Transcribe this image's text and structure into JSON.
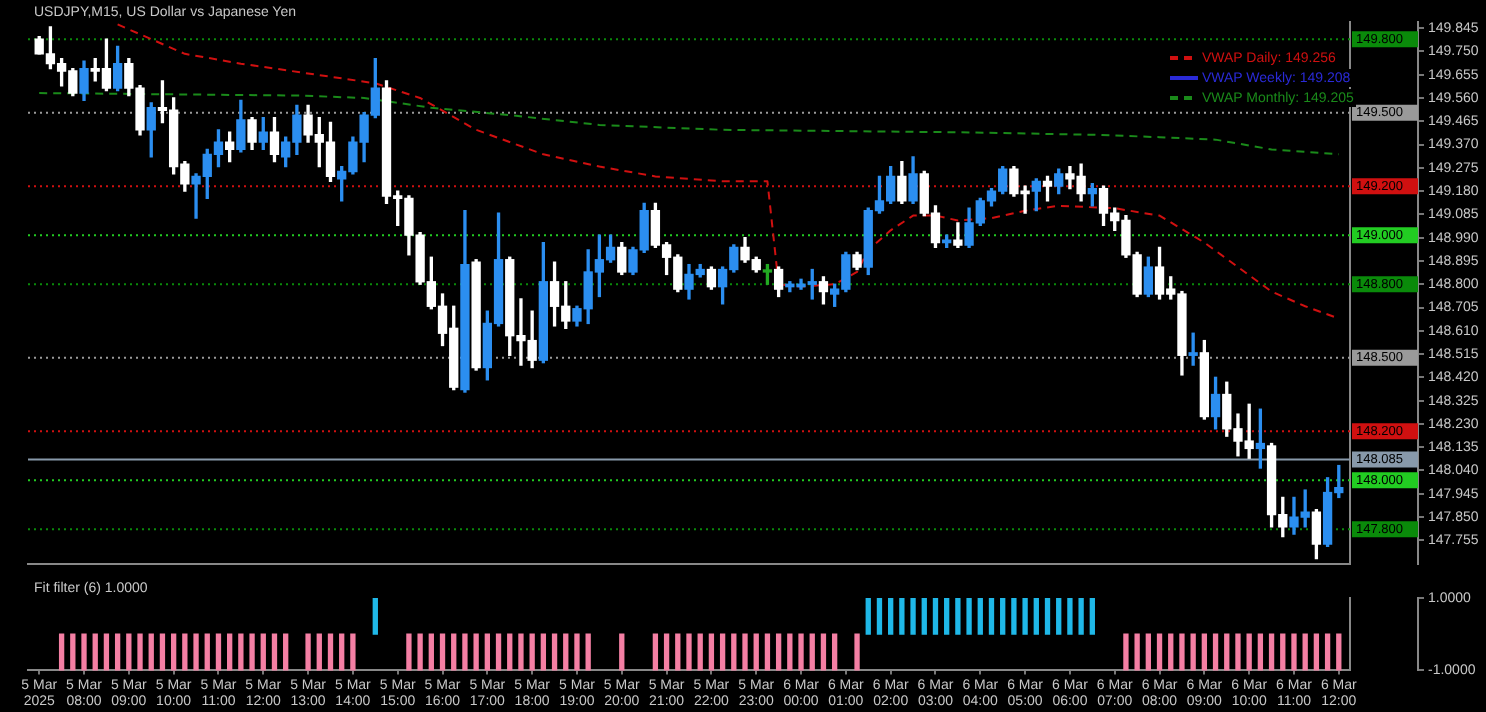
{
  "chart_data": [
    {
      "type": "candlestick",
      "title": "USDJPY,M15, US Dollar vs Japanese Yen",
      "legend": "top right",
      "tick_labels": "y",
      "grid": false,
      "x": [
        "2025-03-05T07:00",
        "2025-03-05T07:15",
        "2025-03-05T07:30",
        "2025-03-05T07:45",
        "2025-03-05T08:00",
        "2025-03-05T08:15",
        "2025-03-05T08:30",
        "2025-03-05T08:45",
        "2025-03-05T09:00",
        "2025-03-05T09:15",
        "2025-03-05T09:30",
        "2025-03-05T09:45",
        "2025-03-05T10:00",
        "2025-03-05T10:15",
        "2025-03-05T10:30",
        "2025-03-05T10:45",
        "2025-03-05T11:00",
        "2025-03-05T11:15",
        "2025-03-05T11:30",
        "2025-03-05T11:45",
        "2025-03-05T12:00",
        "2025-03-05T12:15",
        "2025-03-05T12:30",
        "2025-03-05T12:45",
        "2025-03-05T13:00",
        "2025-03-05T13:15",
        "2025-03-05T13:30",
        "2025-03-05T13:45",
        "2025-03-05T14:00",
        "2025-03-05T14:15",
        "2025-03-05T14:30",
        "2025-03-05T14:45",
        "2025-03-05T15:00",
        "2025-03-05T15:15",
        "2025-03-05T15:30",
        "2025-03-05T15:45",
        "2025-03-05T16:00",
        "2025-03-05T16:15",
        "2025-03-05T16:30",
        "2025-03-05T16:45",
        "2025-03-05T17:00",
        "2025-03-05T17:15",
        "2025-03-05T17:30",
        "2025-03-05T17:45",
        "2025-03-05T18:00",
        "2025-03-05T18:15",
        "2025-03-05T18:30",
        "2025-03-05T18:45",
        "2025-03-05T19:00",
        "2025-03-05T19:15",
        "2025-03-05T19:30",
        "2025-03-05T19:45",
        "2025-03-05T20:00",
        "2025-03-05T20:15",
        "2025-03-05T20:30",
        "2025-03-05T20:45",
        "2025-03-05T21:00",
        "2025-03-05T21:15",
        "2025-03-05T21:30",
        "2025-03-05T21:45",
        "2025-03-05T22:00",
        "2025-03-05T22:15",
        "2025-03-05T22:30",
        "2025-03-05T22:45",
        "2025-03-05T23:00",
        "2025-03-05T23:15",
        "2025-03-05T23:30",
        "2025-03-05T23:45",
        "2025-03-06T00:00",
        "2025-03-06T00:15",
        "2025-03-06T00:30",
        "2025-03-06T00:45",
        "2025-03-06T01:00",
        "2025-03-06T01:15",
        "2025-03-06T01:30",
        "2025-03-06T01:45",
        "2025-03-06T02:00",
        "2025-03-06T02:15",
        "2025-03-06T02:30",
        "2025-03-06T02:45",
        "2025-03-06T03:00",
        "2025-03-06T03:15",
        "2025-03-06T03:30",
        "2025-03-06T03:45",
        "2025-03-06T04:00",
        "2025-03-06T04:15",
        "2025-03-06T04:30",
        "2025-03-06T04:45",
        "2025-03-06T05:00",
        "2025-03-06T05:15",
        "2025-03-06T05:30",
        "2025-03-06T05:45",
        "2025-03-06T06:00",
        "2025-03-06T06:15",
        "2025-03-06T06:30",
        "2025-03-06T06:45",
        "2025-03-06T07:00",
        "2025-03-06T07:15",
        "2025-03-06T07:30",
        "2025-03-06T07:45",
        "2025-03-06T08:00",
        "2025-03-06T08:15",
        "2025-03-06T08:30",
        "2025-03-06T08:45",
        "2025-03-06T09:00",
        "2025-03-06T09:15",
        "2025-03-06T09:30",
        "2025-03-06T09:45",
        "2025-03-06T10:00",
        "2025-03-06T10:15",
        "2025-03-06T10:30",
        "2025-03-06T10:45",
        "2025-03-06T11:00",
        "2025-03-06T11:15",
        "2025-03-06T11:30",
        "2025-03-06T11:45",
        "2025-03-06T12:00"
      ],
      "ohlc": [
        [
          149.8,
          149.81,
          149.74,
          149.74
        ],
        [
          149.74,
          149.85,
          149.68,
          149.7
        ],
        [
          149.7,
          149.72,
          149.61,
          149.67
        ],
        [
          149.67,
          149.68,
          149.57,
          149.58
        ],
        [
          149.58,
          149.71,
          149.55,
          149.68
        ],
        [
          149.68,
          149.72,
          149.63,
          149.67
        ],
        [
          149.68,
          149.8,
          149.59,
          149.6
        ],
        [
          149.6,
          149.77,
          149.59,
          149.7
        ],
        [
          149.7,
          149.72,
          149.57,
          149.6
        ],
        [
          149.6,
          149.61,
          149.41,
          149.43
        ],
        [
          149.43,
          149.54,
          149.32,
          149.52
        ],
        [
          149.52,
          149.63,
          149.46,
          149.51
        ],
        [
          149.51,
          149.56,
          149.25,
          149.28
        ],
        [
          149.29,
          149.3,
          149.18,
          149.21
        ],
        [
          149.21,
          149.25,
          149.07,
          149.24
        ],
        [
          149.24,
          149.35,
          149.15,
          149.33
        ],
        [
          149.33,
          149.43,
          149.28,
          149.38
        ],
        [
          149.38,
          149.42,
          149.3,
          149.35
        ],
        [
          149.35,
          149.55,
          149.34,
          149.47
        ],
        [
          149.47,
          149.48,
          149.35,
          149.38
        ],
        [
          149.38,
          149.48,
          149.35,
          149.42
        ],
        [
          149.42,
          149.48,
          149.3,
          149.33
        ],
        [
          149.32,
          149.4,
          149.28,
          149.38
        ],
        [
          149.38,
          149.53,
          149.33,
          149.49
        ],
        [
          149.49,
          149.53,
          149.38,
          149.41
        ],
        [
          149.41,
          149.48,
          149.28,
          149.38
        ],
        [
          149.38,
          149.46,
          149.22,
          149.24
        ],
        [
          149.23,
          149.28,
          149.14,
          149.26
        ],
        [
          149.26,
          149.4,
          149.25,
          149.38
        ],
        [
          149.38,
          149.5,
          149.3,
          149.49
        ],
        [
          149.49,
          149.72,
          149.48,
          149.6
        ],
        [
          149.6,
          149.63,
          149.13,
          149.16
        ],
        [
          149.16,
          149.18,
          149.04,
          149.15
        ],
        [
          149.15,
          149.16,
          148.92,
          149.0
        ],
        [
          149.0,
          149.01,
          148.8,
          148.81
        ],
        [
          148.81,
          148.91,
          148.7,
          148.71
        ],
        [
          148.71,
          148.76,
          148.55,
          148.6
        ],
        [
          148.62,
          148.71,
          148.37,
          148.38
        ],
        [
          148.37,
          149.1,
          148.36,
          148.88
        ],
        [
          148.89,
          148.9,
          148.45,
          148.46
        ],
        [
          148.46,
          148.69,
          148.41,
          148.64
        ],
        [
          148.64,
          149.09,
          148.63,
          148.9
        ],
        [
          148.9,
          148.91,
          148.51,
          148.59
        ],
        [
          148.59,
          148.74,
          148.47,
          148.57
        ],
        [
          148.57,
          148.69,
          148.46,
          148.49
        ],
        [
          148.49,
          148.97,
          148.48,
          148.81
        ],
        [
          148.81,
          148.89,
          148.63,
          148.71
        ],
        [
          148.71,
          148.81,
          148.62,
          148.65
        ],
        [
          148.65,
          148.71,
          148.63,
          148.7
        ],
        [
          148.7,
          148.94,
          148.64,
          148.85
        ],
        [
          148.85,
          149.0,
          148.75,
          148.9
        ],
        [
          148.9,
          149.0,
          148.89,
          148.95
        ],
        [
          148.95,
          148.97,
          148.84,
          148.85
        ],
        [
          148.85,
          148.95,
          148.84,
          148.94
        ],
        [
          148.94,
          149.13,
          148.93,
          149.1
        ],
        [
          149.1,
          149.13,
          148.95,
          148.96
        ],
        [
          148.96,
          148.97,
          148.84,
          148.91
        ],
        [
          148.91,
          148.92,
          148.77,
          148.78
        ],
        [
          148.78,
          148.88,
          148.74,
          148.84
        ],
        [
          148.84,
          148.88,
          148.83,
          148.86
        ],
        [
          148.86,
          148.87,
          148.78,
          148.79
        ],
        [
          148.79,
          148.87,
          148.72,
          148.86
        ],
        [
          148.86,
          148.96,
          148.85,
          148.95
        ],
        [
          148.95,
          148.99,
          148.89,
          148.9
        ],
        [
          148.9,
          148.91,
          148.85,
          148.86
        ],
        [
          148.85,
          148.88,
          148.8,
          148.85
        ],
        [
          148.86,
          148.87,
          148.75,
          148.78
        ],
        [
          148.79,
          148.81,
          148.77,
          148.8
        ],
        [
          148.79,
          148.82,
          148.78,
          148.8
        ],
        [
          148.8,
          148.86,
          148.74,
          148.81
        ],
        [
          148.81,
          148.83,
          148.72,
          148.77
        ],
        [
          148.76,
          148.8,
          148.71,
          148.78
        ],
        [
          148.78,
          148.93,
          148.77,
          148.92
        ],
        [
          148.92,
          148.93,
          148.86,
          148.87
        ],
        [
          148.87,
          149.11,
          148.84,
          149.1
        ],
        [
          149.1,
          149.24,
          149.09,
          149.14
        ],
        [
          149.14,
          149.28,
          149.13,
          149.24
        ],
        [
          149.24,
          149.3,
          149.13,
          149.14
        ],
        [
          149.14,
          149.32,
          149.13,
          149.25
        ],
        [
          149.25,
          149.26,
          149.08,
          149.09
        ],
        [
          149.09,
          149.12,
          148.95,
          148.97
        ],
        [
          148.97,
          149.0,
          148.95,
          148.98
        ],
        [
          148.98,
          149.05,
          148.95,
          148.96
        ],
        [
          148.96,
          149.11,
          148.95,
          149.05
        ],
        [
          149.05,
          149.15,
          149.04,
          149.14
        ],
        [
          149.14,
          149.19,
          149.12,
          149.18
        ],
        [
          149.18,
          149.28,
          149.17,
          149.27
        ],
        [
          149.27,
          149.28,
          149.16,
          149.17
        ],
        [
          149.18,
          149.2,
          149.09,
          149.17
        ],
        [
          149.18,
          149.23,
          149.1,
          149.22
        ],
        [
          149.22,
          149.24,
          149.14,
          149.2
        ],
        [
          149.2,
          149.27,
          149.17,
          149.25
        ],
        [
          149.25,
          149.28,
          149.19,
          149.23
        ],
        [
          149.24,
          149.29,
          149.14,
          149.17
        ],
        [
          149.17,
          149.21,
          149.12,
          149.19
        ],
        [
          149.19,
          149.2,
          149.04,
          149.09
        ],
        [
          149.09,
          149.11,
          149.02,
          149.06
        ],
        [
          149.06,
          149.08,
          148.91,
          148.92
        ],
        [
          148.92,
          148.93,
          148.75,
          148.76
        ],
        [
          148.76,
          148.91,
          148.75,
          148.87
        ],
        [
          148.87,
          148.95,
          148.74,
          148.76
        ],
        [
          148.78,
          148.83,
          148.74,
          148.76
        ],
        [
          148.76,
          148.77,
          148.43,
          148.51
        ],
        [
          148.51,
          148.6,
          148.47,
          148.52
        ],
        [
          148.52,
          148.57,
          148.25,
          148.26
        ],
        [
          148.26,
          148.42,
          148.21,
          148.35
        ],
        [
          148.35,
          148.4,
          148.18,
          148.21
        ],
        [
          148.21,
          148.27,
          148.1,
          148.16
        ],
        [
          148.16,
          148.31,
          148.09,
          148.13
        ],
        [
          148.13,
          148.29,
          148.05,
          148.15
        ],
        [
          148.14,
          148.15,
          147.81,
          147.86
        ],
        [
          147.86,
          147.93,
          147.77,
          147.81
        ],
        [
          147.81,
          147.93,
          147.78,
          147.85
        ],
        [
          147.85,
          147.96,
          147.81,
          147.87
        ],
        [
          147.87,
          147.88,
          147.68,
          147.74
        ],
        [
          147.74,
          148.01,
          147.73,
          147.95
        ],
        [
          147.95,
          148.06,
          147.93,
          147.97
        ]
      ],
      "colors": [
        "#ffffff",
        "#ffffff",
        "#ffffff",
        "#ffffff",
        "#2b8ef0",
        "#ffffff",
        "#ffffff",
        "#2b8ef0",
        "#ffffff",
        "#ffffff",
        "#2b8ef0",
        "#ffffff",
        "#ffffff",
        "#ffffff",
        "#2b8ef0",
        "#2b8ef0",
        "#2b8ef0",
        "#ffffff",
        "#2b8ef0",
        "#ffffff",
        "#2b8ef0",
        "#ffffff",
        "#2b8ef0",
        "#2b8ef0",
        "#ffffff",
        "#ffffff",
        "#ffffff",
        "#2b8ef0",
        "#2b8ef0",
        "#2b8ef0",
        "#2b8ef0",
        "#ffffff",
        "#ffffff",
        "#ffffff",
        "#ffffff",
        "#ffffff",
        "#ffffff",
        "#ffffff",
        "#2b8ef0",
        "#ffffff",
        "#2b8ef0",
        "#2b8ef0",
        "#ffffff",
        "#ffffff",
        "#ffffff",
        "#2b8ef0",
        "#ffffff",
        "#ffffff",
        "#2b8ef0",
        "#2b8ef0",
        "#2b8ef0",
        "#2b8ef0",
        "#ffffff",
        "#2b8ef0",
        "#2b8ef0",
        "#ffffff",
        "#ffffff",
        "#ffffff",
        "#2b8ef0",
        "#2b8ef0",
        "#ffffff",
        "#2b8ef0",
        "#2b8ef0",
        "#ffffff",
        "#ffffff",
        "#22aa22",
        "#ffffff",
        "#2b8ef0",
        "#2b8ef0",
        "#2b8ef0",
        "#ffffff",
        "#2b8ef0",
        "#2b8ef0",
        "#ffffff",
        "#2b8ef0",
        "#2b8ef0",
        "#2b8ef0",
        "#ffffff",
        "#2b8ef0",
        "#ffffff",
        "#ffffff",
        "#2b8ef0",
        "#ffffff",
        "#2b8ef0",
        "#2b8ef0",
        "#2b8ef0",
        "#2b8ef0",
        "#ffffff",
        "#ffffff",
        "#2b8ef0",
        "#ffffff",
        "#2b8ef0",
        "#ffffff",
        "#ffffff",
        "#2b8ef0",
        "#ffffff",
        "#ffffff",
        "#ffffff",
        "#ffffff",
        "#2b8ef0",
        "#ffffff",
        "#ffffff",
        "#ffffff",
        "#2b8ef0",
        "#ffffff",
        "#2b8ef0",
        "#ffffff",
        "#ffffff",
        "#ffffff",
        "#2b8ef0",
        "#ffffff",
        "#ffffff",
        "#2b8ef0",
        "#2b8ef0",
        "#ffffff",
        "#2b8ef0",
        "#2b8ef0"
      ],
      "series": [
        {
          "name": "VWAP Daily: 149.256",
          "type": "line",
          "color": "#d01010",
          "line_style": "dashed",
          "x": [
            "2025-03-05T08:45",
            "2025-03-05T10:15",
            "2025-03-05T11:30",
            "2025-03-05T13:00",
            "2025-03-05T14:30",
            "2025-03-05T15:30",
            "2025-03-05T16:45",
            "2025-03-05T18:15",
            "2025-03-05T19:30",
            "2025-03-05T20:45",
            "2025-03-05T22:15",
            "2025-03-05T23:15",
            "2025-03-05T23:30",
            "2025-03-06T00:00",
            "2025-03-06T00:45",
            "2025-03-06T01:15",
            "2025-03-06T01:30",
            "2025-03-06T02:00",
            "2025-03-06T02:30",
            "2025-03-06T03:00",
            "2025-03-06T03:30",
            "2025-03-06T04:15",
            "2025-03-06T05:00",
            "2025-03-06T05:45",
            "2025-03-06T07:00",
            "2025-03-06T08:00",
            "2025-03-06T09:00",
            "2025-03-06T09:45",
            "2025-03-06T10:30",
            "2025-03-06T11:15",
            "2025-03-06T12:00"
          ],
          "values": [
            149.86,
            149.74,
            149.7,
            149.66,
            149.62,
            149.56,
            149.43,
            149.33,
            149.28,
            149.24,
            149.22,
            149.22,
            148.8,
            148.79,
            148.8,
            148.85,
            148.94,
            149.02,
            149.08,
            149.08,
            149.06,
            149.07,
            149.1,
            149.12,
            149.11,
            149.08,
            148.97,
            148.87,
            148.77,
            148.71,
            148.66
          ]
        },
        {
          "name": "VWAP Monthly: 149.205",
          "type": "line",
          "color": "#1a8a1a",
          "line_style": "dashed",
          "x": [
            "2025-03-05T07:00",
            "2025-03-05T12:45",
            "2025-03-05T14:15",
            "2025-03-05T15:45",
            "2025-03-05T17:30",
            "2025-03-05T19:30",
            "2025-03-05T22:15",
            "2025-03-06T03:30",
            "2025-03-06T06:30",
            "2025-03-06T08:00",
            "2025-03-06T09:15",
            "2025-03-06T10:30",
            "2025-03-06T12:00"
          ],
          "values": [
            149.58,
            149.57,
            149.56,
            149.52,
            149.49,
            149.45,
            149.43,
            149.42,
            149.41,
            149.4,
            149.39,
            149.35,
            149.33
          ]
        }
      ],
      "annotations": [
        "VWAP Weekly: 149.208"
      ],
      "xlim": [
        "2025-03-05T06:45",
        "2025-03-06T12:15"
      ],
      "ref_lines": [
        {
          "axis": "y",
          "value": 149.8,
          "label": "149.800",
          "color": "#0a8a0a",
          "line_style": "dotted"
        },
        {
          "axis": "y",
          "value": 149.5,
          "label": "149.500",
          "color": "#9a9a9a",
          "line_style": "dotted"
        },
        {
          "axis": "y",
          "value": 149.2,
          "label": "149.200",
          "color": "#d01010",
          "line_style": "dotted"
        },
        {
          "axis": "y",
          "value": 149.0,
          "label": "149.000",
          "color": "#22cc22",
          "line_style": "dotted"
        },
        {
          "axis": "y",
          "value": 148.8,
          "label": "148.800",
          "color": "#0a8a0a",
          "line_style": "dotted"
        },
        {
          "axis": "y",
          "value": 148.5,
          "label": "148.500",
          "color": "#9a9a9a",
          "line_style": "dotted"
        },
        {
          "axis": "y",
          "value": 148.2,
          "label": "148.200",
          "color": "#d01010",
          "line_style": "dotted"
        },
        {
          "axis": "y",
          "value": 148.085,
          "label": "148.085",
          "color": "#8899aa",
          "line_style": "solid"
        },
        {
          "axis": "y",
          "value": 148.0,
          "label": "148.000",
          "color": "#22cc22",
          "line_style": "dotted"
        },
        {
          "axis": "y",
          "value": 147.8,
          "label": "147.800",
          "color": "#0a8a0a",
          "line_style": "dotted"
        }
      ],
      "ylim": [
        147.66,
        149.87
      ],
      "yticks": [
        149.845,
        {
          "value": 149.75,
          "label": "149.750"
        },
        149.655,
        {
          "value": 149.56,
          "label": "149.560"
        },
        149.465,
        {
          "value": 149.37,
          "label": "149.370"
        },
        149.275,
        {
          "value": 149.18,
          "label": "149.180"
        },
        149.085,
        {
          "value": 148.99,
          "label": "148.990"
        },
        148.895,
        {
          "value": 148.8,
          "label": "148.800"
        },
        148.705,
        {
          "value": 148.61,
          "label": "148.610"
        },
        148.515,
        {
          "value": 148.42,
          "label": "148.420"
        },
        148.325,
        {
          "value": 148.23,
          "label": "148.230"
        },
        148.135,
        {
          "value": 148.04,
          "label": "148.040"
        },
        147.945,
        {
          "value": 147.85,
          "label": "147.850"
        },
        147.755
      ]
    },
    {
      "type": "bar",
      "title": "Fit filter (6) 1.0000",
      "grid": false,
      "x": [
        "2025-03-05T07:30",
        "2025-03-05T07:45",
        "2025-03-05T08:00",
        "2025-03-05T08:15",
        "2025-03-05T08:30",
        "2025-03-05T08:45",
        "2025-03-05T09:00",
        "2025-03-05T09:15",
        "2025-03-05T09:30",
        "2025-03-05T09:45",
        "2025-03-05T10:00",
        "2025-03-05T10:15",
        "2025-03-05T10:30",
        "2025-03-05T10:45",
        "2025-03-05T11:00",
        "2025-03-05T11:15",
        "2025-03-05T11:30",
        "2025-03-05T11:45",
        "2025-03-05T12:00",
        "2025-03-05T12:15",
        "2025-03-05T12:30",
        "2025-03-05T12:45",
        "2025-03-05T13:00",
        "2025-03-05T13:15",
        "2025-03-05T13:30",
        "2025-03-05T13:45",
        "2025-03-05T14:00",
        "2025-03-05T14:15",
        "2025-03-05T14:30",
        "2025-03-05T14:45",
        "2025-03-05T15:00",
        "2025-03-05T15:15",
        "2025-03-05T15:30",
        "2025-03-05T15:45",
        "2025-03-05T16:00",
        "2025-03-05T16:15",
        "2025-03-05T16:30",
        "2025-03-05T16:45",
        "2025-03-05T17:00",
        "2025-03-05T17:15",
        "2025-03-05T17:30",
        "2025-03-05T17:45",
        "2025-03-05T18:00",
        "2025-03-05T18:15",
        "2025-03-05T18:30",
        "2025-03-05T18:45",
        "2025-03-05T19:00",
        "2025-03-05T19:15",
        "2025-03-05T19:30",
        "2025-03-05T19:45",
        "2025-03-05T20:00",
        "2025-03-05T20:15",
        "2025-03-05T20:30",
        "2025-03-05T20:45",
        "2025-03-05T21:00",
        "2025-03-05T21:15",
        "2025-03-05T21:30",
        "2025-03-05T21:45",
        "2025-03-05T22:00",
        "2025-03-05T22:15",
        "2025-03-05T22:30",
        "2025-03-05T22:45",
        "2025-03-05T23:00",
        "2025-03-05T23:15",
        "2025-03-05T23:30",
        "2025-03-05T23:45",
        "2025-03-06T00:00",
        "2025-03-06T00:15",
        "2025-03-06T00:30",
        "2025-03-06T00:45",
        "2025-03-06T01:00",
        "2025-03-06T01:15",
        "2025-03-06T01:30",
        "2025-03-06T01:45",
        "2025-03-06T02:00",
        "2025-03-06T02:15",
        "2025-03-06T02:30",
        "2025-03-06T02:45",
        "2025-03-06T03:00",
        "2025-03-06T03:15",
        "2025-03-06T03:30",
        "2025-03-06T03:45",
        "2025-03-06T04:00",
        "2025-03-06T04:15",
        "2025-03-06T04:30",
        "2025-03-06T04:45",
        "2025-03-06T05:00",
        "2025-03-06T05:15",
        "2025-03-06T05:30",
        "2025-03-06T05:45",
        "2025-03-06T06:00",
        "2025-03-06T06:15",
        "2025-03-06T06:30",
        "2025-03-06T06:45",
        "2025-03-06T07:00",
        "2025-03-06T07:15",
        "2025-03-06T07:30",
        "2025-03-06T07:45",
        "2025-03-06T08:00",
        "2025-03-06T08:15",
        "2025-03-06T08:30",
        "2025-03-06T08:45",
        "2025-03-06T09:00",
        "2025-03-06T09:15",
        "2025-03-06T09:30",
        "2025-03-06T09:45",
        "2025-03-06T10:00",
        "2025-03-06T10:15",
        "2025-03-06T10:30",
        "2025-03-06T10:45",
        "2025-03-06T11:00",
        "2025-03-06T11:15",
        "2025-03-06T11:30",
        "2025-03-06T11:45",
        "2025-03-06T12:00"
      ],
      "values": [
        -1,
        -1,
        -1,
        -1,
        -1,
        -1,
        -1,
        -1,
        -1,
        -1,
        -1,
        -1,
        -1,
        -1,
        -1,
        -1,
        -1,
        -1,
        -1,
        -1,
        -1,
        null,
        -1,
        -1,
        -1,
        -1,
        -1,
        null,
        1,
        null,
        null,
        -1,
        -1,
        -1,
        -1,
        -1,
        -1,
        -1,
        -1,
        -1,
        -1,
        -1,
        -1,
        -1,
        -1,
        -1,
        -1,
        -1,
        null,
        null,
        -1,
        null,
        null,
        -1,
        -1,
        -1,
        -1,
        -1,
        -1,
        -1,
        -1,
        -1,
        -1,
        -1,
        -1,
        -1,
        -1,
        -1,
        -1,
        -1,
        null,
        -1,
        1,
        1,
        1,
        1,
        1,
        1,
        1,
        1,
        1,
        1,
        1,
        1,
        1,
        1,
        1,
        1,
        1,
        1,
        1,
        1,
        1,
        null,
        null,
        -1,
        -1,
        -1,
        -1,
        -1,
        -1,
        -1,
        -1,
        -1,
        -1,
        -1,
        -1,
        -1,
        -1,
        -1,
        -1,
        -1,
        -1,
        -1,
        -1
      ],
      "colors": [
        "#f47fa4",
        "#f47fa4",
        "#f47fa4",
        "#f47fa4",
        "#f47fa4",
        "#f47fa4",
        "#f47fa4",
        "#f47fa4",
        "#f47fa4",
        "#f47fa4",
        "#f47fa4",
        "#f47fa4",
        "#f47fa4",
        "#f47fa4",
        "#f47fa4",
        "#f47fa4",
        "#f47fa4",
        "#f47fa4",
        "#f47fa4",
        "#f47fa4",
        "#f47fa4",
        null,
        "#f47fa4",
        "#f47fa4",
        "#f47fa4",
        "#f47fa4",
        "#f47fa4",
        null,
        "#1fb8e8",
        null,
        null,
        "#f47fa4",
        "#f47fa4",
        "#f47fa4",
        "#f47fa4",
        "#f47fa4",
        "#f47fa4",
        "#f47fa4",
        "#f47fa4",
        "#f47fa4",
        "#f47fa4",
        "#f47fa4",
        "#f47fa4",
        "#f47fa4",
        "#f47fa4",
        "#f47fa4",
        "#f47fa4",
        "#f47fa4",
        null,
        null,
        "#f47fa4",
        null,
        null,
        "#f47fa4",
        "#f47fa4",
        "#f47fa4",
        "#f47fa4",
        "#f47fa4",
        "#f47fa4",
        "#f47fa4",
        "#f47fa4",
        "#f47fa4",
        "#f47fa4",
        "#f47fa4",
        "#f47fa4",
        "#f47fa4",
        "#f47fa4",
        "#f47fa4",
        "#f47fa4",
        "#f47fa4",
        null,
        "#f47fa4",
        "#1fb8e8",
        "#1fb8e8",
        "#1fb8e8",
        "#1fb8e8",
        "#1fb8e8",
        "#1fb8e8",
        "#1fb8e8",
        "#1fb8e8",
        "#1fb8e8",
        "#1fb8e8",
        "#1fb8e8",
        "#1fb8e8",
        "#1fb8e8",
        "#1fb8e8",
        "#1fb8e8",
        "#1fb8e8",
        "#1fb8e8",
        "#1fb8e8",
        "#1fb8e8",
        "#1fb8e8",
        "#1fb8e8",
        null,
        null,
        "#f47fa4",
        "#f47fa4",
        "#f47fa4",
        "#f47fa4",
        "#f47fa4",
        "#f47fa4",
        "#f47fa4",
        "#f47fa4",
        "#f47fa4",
        "#f47fa4",
        "#f47fa4",
        "#f47fa4",
        "#f47fa4",
        "#f47fa4",
        "#f47fa4",
        "#f47fa4",
        "#f47fa4",
        "#f47fa4",
        "#f47fa4",
        "#f47fa4"
      ],
      "xlim": [
        "2025-03-05T06:45",
        "2025-03-06T12:15"
      ],
      "xticks": [
        {
          "value": "2025-03-05T07:00",
          "label": "5 Mar 2025"
        },
        {
          "value": "2025-03-05T08:00",
          "label": "5 Mar 08:00"
        },
        {
          "value": "2025-03-05T09:00",
          "label": "5 Mar 09:00"
        },
        {
          "value": "2025-03-05T10:00",
          "label": "5 Mar 10:00"
        },
        {
          "value": "2025-03-05T11:00",
          "label": "5 Mar 11:00"
        },
        {
          "value": "2025-03-05T12:00",
          "label": "5 Mar 12:00"
        },
        {
          "value": "2025-03-05T13:00",
          "label": "5 Mar 13:00"
        },
        {
          "value": "2025-03-05T14:00",
          "label": "5 Mar 14:00"
        },
        {
          "value": "2025-03-05T15:00",
          "label": "5 Mar 15:00"
        },
        {
          "value": "2025-03-05T16:00",
          "label": "5 Mar 16:00"
        },
        {
          "value": "2025-03-05T17:00",
          "label": "5 Mar 17:00"
        },
        {
          "value": "2025-03-05T18:00",
          "label": "5 Mar 18:00"
        },
        {
          "value": "2025-03-05T19:00",
          "label": "5 Mar 19:00"
        },
        {
          "value": "2025-03-05T20:00",
          "label": "5 Mar 20:00"
        },
        {
          "value": "2025-03-05T21:00",
          "label": "5 Mar 21:00"
        },
        {
          "value": "2025-03-05T22:00",
          "label": "5 Mar 22:00"
        },
        {
          "value": "2025-03-05T23:00",
          "label": "5 Mar 23:00"
        },
        {
          "value": "2025-03-06T00:00",
          "label": "6 Mar 00:00"
        },
        {
          "value": "2025-03-06T01:00",
          "label": "6 Mar 01:00"
        },
        {
          "value": "2025-03-06T02:00",
          "label": "6 Mar 02:00"
        },
        {
          "value": "2025-03-06T03:00",
          "label": "6 Mar 03:00"
        },
        {
          "value": "2025-03-06T04:00",
          "label": "6 Mar 04:00"
        },
        {
          "value": "2025-03-06T05:00",
          "label": "6 Mar 05:00"
        },
        {
          "value": "2025-03-06T06:00",
          "label": "6 Mar 06:00"
        },
        {
          "value": "2025-03-06T07:00",
          "label": "6 Mar 07:00"
        },
        {
          "value": "2025-03-06T08:00",
          "label": "6 Mar 08:00"
        },
        {
          "value": "2025-03-06T09:00",
          "label": "6 Mar 09:00"
        },
        {
          "value": "2025-03-06T10:00",
          "label": "6 Mar 10:00"
        },
        {
          "value": "2025-03-06T11:00",
          "label": "6 Mar 11:00"
        },
        {
          "value": "2025-03-06T12:00",
          "label": "6 Mar 12:00"
        }
      ],
      "ylim": [
        -1,
        1
      ],
      "yticks": [
        {
          "value": 1,
          "label": "1.0000"
        },
        {
          "value": -1,
          "label": "-1.0000"
        }
      ]
    }
  ]
}
